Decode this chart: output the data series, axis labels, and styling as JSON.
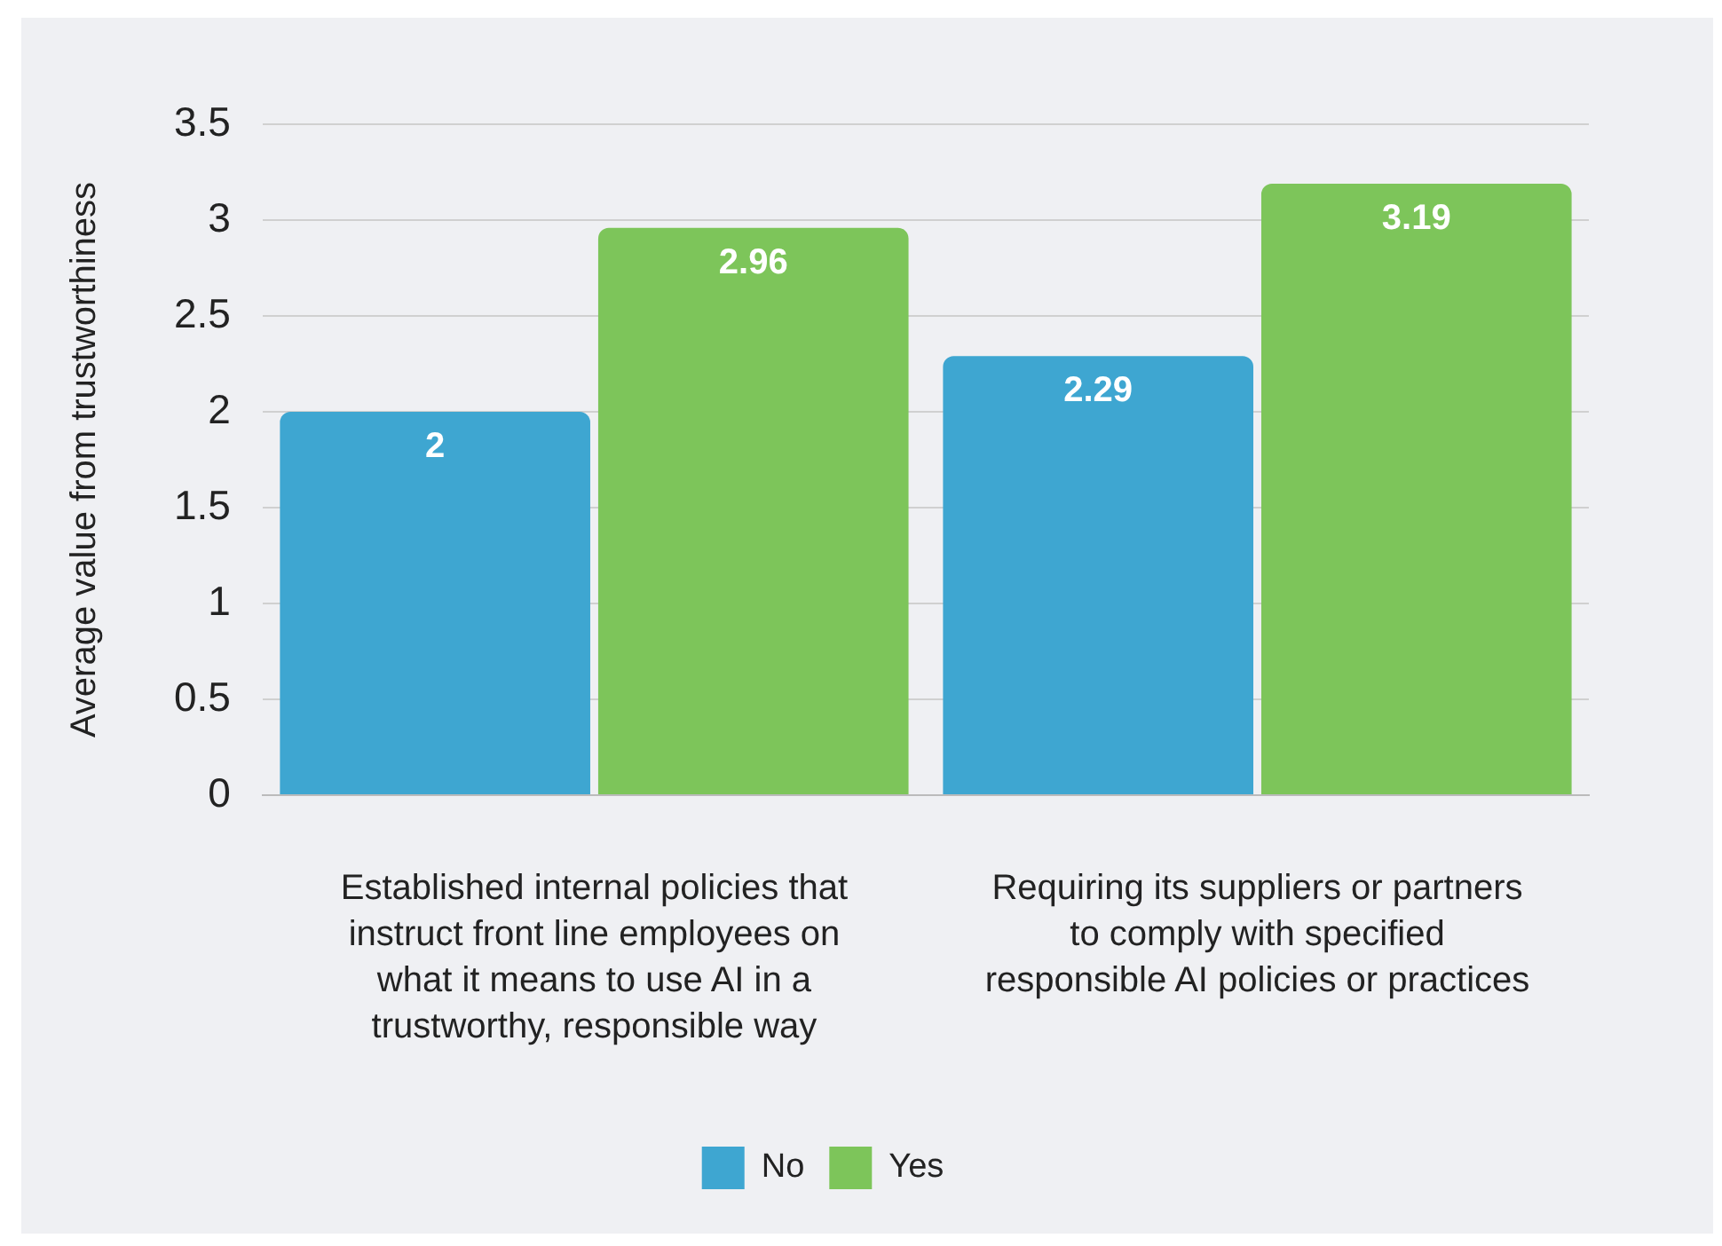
{
  "chart_data": {
    "type": "bar",
    "ylabel": "Average value from trustworthiness",
    "categories": [
      "Established internal policies that instruct front line employees on what it means to use AI in a trustworthy, responsible way",
      "Requiring its suppliers or partners to comply with specified responsible AI policies or practices"
    ],
    "series": [
      {
        "name": "No",
        "color": "#3ea6d1",
        "values": [
          2,
          2.29
        ]
      },
      {
        "name": "Yes",
        "color": "#7dc55a",
        "values": [
          2.96,
          3.19
        ]
      }
    ],
    "ylim": [
      0,
      3.5
    ],
    "yticks": [
      0,
      0.5,
      1,
      1.5,
      2,
      2.5,
      3,
      3.5
    ],
    "grid": "y",
    "legend": "bottom",
    "data_labels": true
  }
}
